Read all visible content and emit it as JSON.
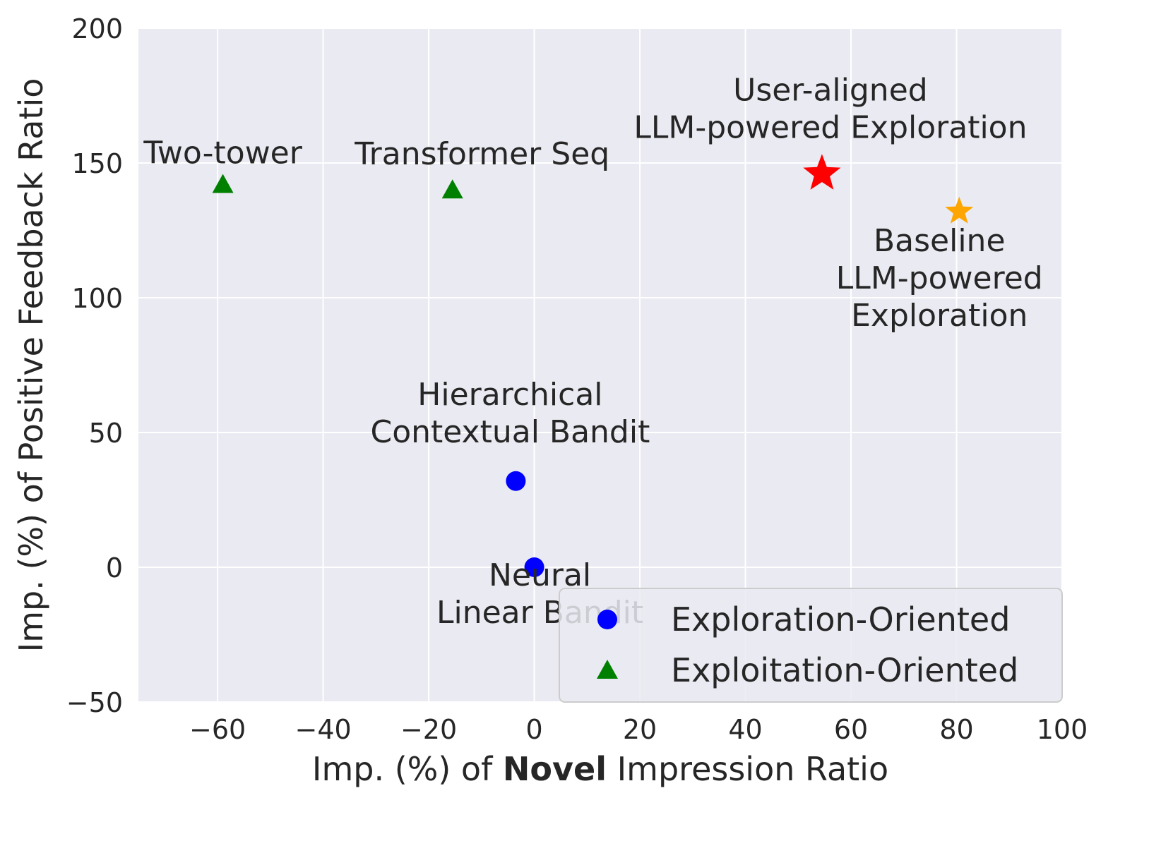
{
  "chart_data": {
    "type": "scatter",
    "xlabel_prefix": "Imp. (%) of ",
    "xlabel_bold": "Novel",
    "xlabel_suffix": " Impression Ratio",
    "ylabel": "Imp. (%) of Positive Feedback Ratio",
    "xlim": [
      -75,
      100
    ],
    "ylim": [
      -50,
      200
    ],
    "xticks": [
      -60,
      -40,
      -20,
      0,
      20,
      40,
      60,
      80,
      100
    ],
    "yticks": [
      -50,
      0,
      50,
      100,
      150,
      200
    ],
    "grid": true,
    "legend_position": "bottom-right",
    "colors": {
      "background": "#eaeaf2",
      "exploration": "#0000ff",
      "exploitation": "#008000",
      "user_aligned": "#ff0000",
      "baseline": "#ffa500"
    },
    "series": [
      {
        "name": "Exploration-Oriented",
        "marker": "circle",
        "color": "#0000ff",
        "points": [
          {
            "x": -3.5,
            "y": 32,
            "label": [
              "Hierarchical",
              "Contextual Bandit"
            ]
          },
          {
            "x": 0,
            "y": 0,
            "label": [
              "Neural",
              "Linear Bandit"
            ]
          }
        ]
      },
      {
        "name": "Exploitation-Oriented",
        "marker": "triangle",
        "color": "#008000",
        "points": [
          {
            "x": -59,
            "y": 142,
            "label": [
              "Two-tower"
            ]
          },
          {
            "x": -15.5,
            "y": 140,
            "label": [
              "Transformer Seq"
            ]
          }
        ]
      },
      {
        "name": "",
        "marker": "star",
        "color": "#ff0000",
        "size": "large",
        "points": [
          {
            "x": 54.5,
            "y": 146,
            "label": [
              "User-aligned",
              "LLM-powered Exploration"
            ]
          }
        ]
      },
      {
        "name": "",
        "marker": "star",
        "color": "#ffa500",
        "size": "small",
        "points": [
          {
            "x": 80.5,
            "y": 132,
            "label": [
              "Baseline",
              "LLM-powered",
              "Exploration"
            ]
          }
        ]
      }
    ]
  }
}
